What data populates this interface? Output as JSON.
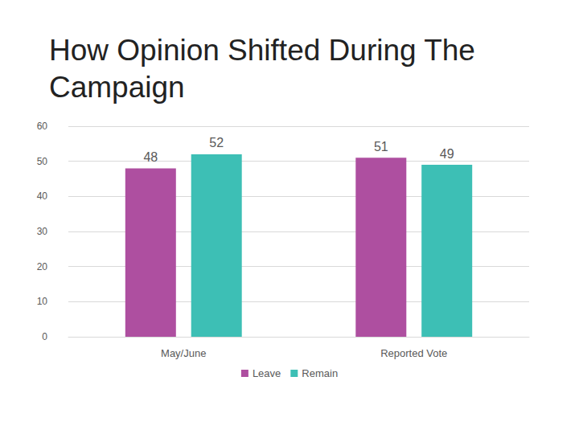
{
  "chart_data": {
    "type": "bar",
    "title": "How Opinion Shifted During The Campaign",
    "categories": [
      "May/June",
      "Reported Vote"
    ],
    "series": [
      {
        "name": "Leave",
        "color": "#ae4fa0",
        "values": [
          48,
          51
        ]
      },
      {
        "name": "Remain",
        "color": "#3dbfb5",
        "values": [
          52,
          49
        ]
      }
    ],
    "ylim": [
      0,
      60
    ],
    "yticks": [
      0,
      10,
      20,
      30,
      40,
      50,
      60
    ],
    "grid": true,
    "legend": "bottom",
    "data_labels": true
  }
}
